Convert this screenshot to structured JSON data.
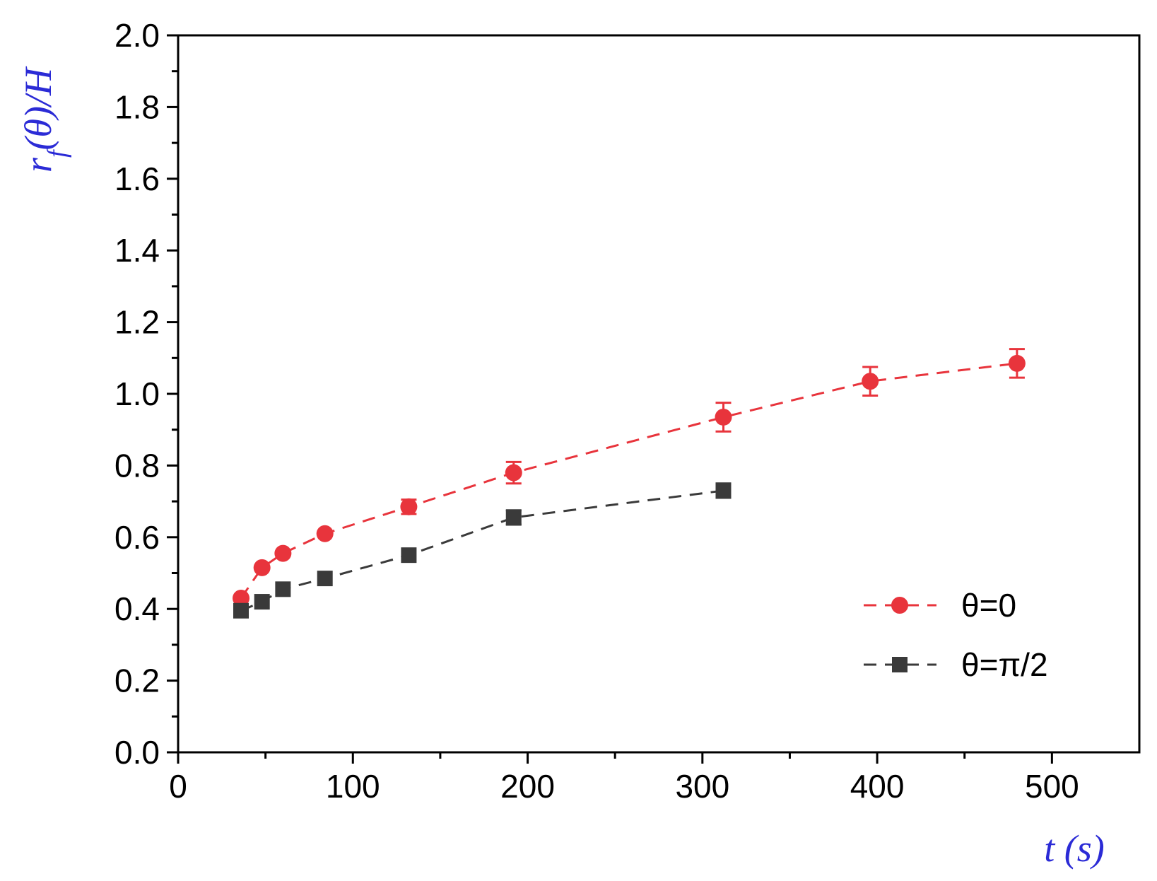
{
  "chart_data": {
    "type": "scatter",
    "title": "",
    "xlabel": "t (s)",
    "ylabel": "r_f(θ)/H",
    "ylabel_parts": {
      "r": "r",
      "sub": "f",
      "rest": "(θ)/H"
    },
    "xlim": [
      0,
      550
    ],
    "ylim": [
      0,
      2.0
    ],
    "x_ticks": [
      0,
      100,
      200,
      300,
      400,
      500
    ],
    "x_tick_labels": [
      "0",
      "100",
      "200",
      "300",
      "400",
      "500"
    ],
    "y_ticks": [
      0,
      0.2,
      0.4,
      0.6,
      0.8,
      1.0,
      1.2,
      1.4,
      1.6,
      1.8,
      2.0
    ],
    "y_tick_labels": [
      "0.0",
      "0.2",
      "0.4",
      "0.6",
      "0.8",
      "1.0",
      "1.2",
      "1.4",
      "1.6",
      "1.8",
      "2.0"
    ],
    "grid": false,
    "legend_position": "bottom-right",
    "series": [
      {
        "name": "θ=0",
        "marker": "circle",
        "color": "#e8343c",
        "line_style": "dashed",
        "x": [
          36,
          48,
          60,
          84,
          132,
          192,
          312,
          396,
          480
        ],
        "y": [
          0.43,
          0.515,
          0.555,
          0.61,
          0.685,
          0.78,
          0.935,
          1.035,
          1.085
        ],
        "yerr": [
          0,
          0,
          0,
          0,
          0.02,
          0.03,
          0.04,
          0.04,
          0.04
        ]
      },
      {
        "name": "θ=π/2",
        "marker": "square",
        "color": "#3a3a3a",
        "line_style": "dashed",
        "x": [
          36,
          48,
          60,
          84,
          132,
          192,
          312
        ],
        "y": [
          0.395,
          0.42,
          0.455,
          0.485,
          0.55,
          0.655,
          0.73
        ],
        "yerr": [
          0,
          0,
          0,
          0,
          0,
          0.02,
          0.02
        ]
      }
    ]
  }
}
